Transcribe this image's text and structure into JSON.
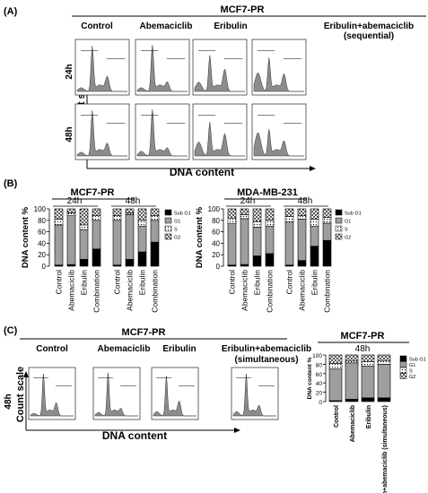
{
  "panels": {
    "a_label": "(A)",
    "b_label": "(B)",
    "c_label": "(C)",
    "a_title": "MCF7-PR",
    "a_columns": [
      "Control",
      "Abemaciclib",
      "Eribulin",
      "Eribulin+abemaciclib",
      "(sequential)"
    ],
    "a_rows": [
      "24h",
      "48h"
    ],
    "a_ylabel": "Count scale",
    "a_xlabel": "DNA content",
    "b_left_title": "MCF7-PR",
    "b_right_title": "MDA-MB-231",
    "b_time_24": "24h",
    "b_time_48": "48h",
    "b_ylabel": "DNA content %",
    "b_legend": [
      "Sub G1",
      "G1",
      "S",
      "G2"
    ],
    "c_title": "MCF7-PR",
    "c_columns": [
      "Control",
      "Abemaciclib",
      "Eribulin",
      "Eribulin+abemaciclib",
      "(simultaneous)"
    ],
    "c_time": "48h",
    "c_ylabel": "Count scale",
    "c_xlabel": "DNA content",
    "c_right_title": "MCF7-PR",
    "c_right_time": "48h",
    "c_right_ylabel": "DNA content %",
    "c_right_legend": [
      "Sub G1",
      "G1",
      "S",
      "G2"
    ]
  },
  "colors": {
    "subg1": "#000000",
    "g1": "#9e9e9e",
    "s": "#ffffff",
    "g2": "#ffffff",
    "histogram": "#8c8c8c"
  },
  "chart_data": [
    {
      "type": "bar",
      "title": "MCF7-PR",
      "ylabel": "DNA content %",
      "ylim": [
        0,
        100
      ],
      "yticks": [
        0,
        20,
        40,
        60,
        80,
        100
      ],
      "categories": [
        "Control",
        "Abemaciclib",
        "Eribulin",
        "Combination",
        "Control",
        "Abemaciclib",
        "Eribulin",
        "Combination"
      ],
      "groups": [
        "24h",
        "48h"
      ],
      "series": [
        {
          "name": "Sub G1",
          "values": [
            2,
            3,
            12,
            30,
            2,
            12,
            25,
            42
          ]
        },
        {
          "name": "G1",
          "values": [
            70,
            85,
            52,
            50,
            78,
            78,
            45,
            38
          ]
        },
        {
          "name": "S",
          "values": [
            10,
            5,
            8,
            8,
            8,
            3,
            10,
            8
          ]
        },
        {
          "name": "G2",
          "values": [
            18,
            7,
            28,
            12,
            12,
            7,
            20,
            12
          ]
        }
      ]
    },
    {
      "type": "bar",
      "title": "MDA-MB-231",
      "ylabel": "DNA content %",
      "ylim": [
        0,
        100
      ],
      "yticks": [
        0,
        20,
        40,
        60,
        80,
        100
      ],
      "categories": [
        "Control",
        "Abemaciclib",
        "Eribulin",
        "Combination",
        "Control",
        "Abemaciclib",
        "Eribulin",
        "Combination"
      ],
      "groups": [
        "24h",
        "48h"
      ],
      "series": [
        {
          "name": "Sub G1",
          "values": [
            2,
            3,
            18,
            22,
            2,
            10,
            35,
            45
          ]
        },
        {
          "name": "G1",
          "values": [
            72,
            80,
            50,
            48,
            75,
            72,
            35,
            30
          ]
        },
        {
          "name": "S",
          "values": [
            10,
            7,
            10,
            10,
            10,
            6,
            12,
            10
          ]
        },
        {
          "name": "G2",
          "values": [
            16,
            10,
            22,
            20,
            13,
            12,
            18,
            15
          ]
        }
      ]
    },
    {
      "type": "bar",
      "title": "MCF7-PR",
      "ylabel": "DNA content %",
      "ylim": [
        0,
        100
      ],
      "yticks": [
        0,
        20,
        40,
        60,
        80,
        100
      ],
      "categories": [
        "Control",
        "Abemaciclib",
        "Eribulin",
        "Eribulin+abemaciclib (simultaneous)"
      ],
      "groups": [
        "48h"
      ],
      "series": [
        {
          "name": "Sub G1",
          "values": [
            2,
            5,
            8,
            8
          ]
        },
        {
          "name": "G1",
          "values": [
            68,
            78,
            68,
            72
          ]
        },
        {
          "name": "S",
          "values": [
            12,
            5,
            10,
            8
          ]
        },
        {
          "name": "G2",
          "values": [
            18,
            12,
            14,
            12
          ]
        }
      ]
    }
  ]
}
